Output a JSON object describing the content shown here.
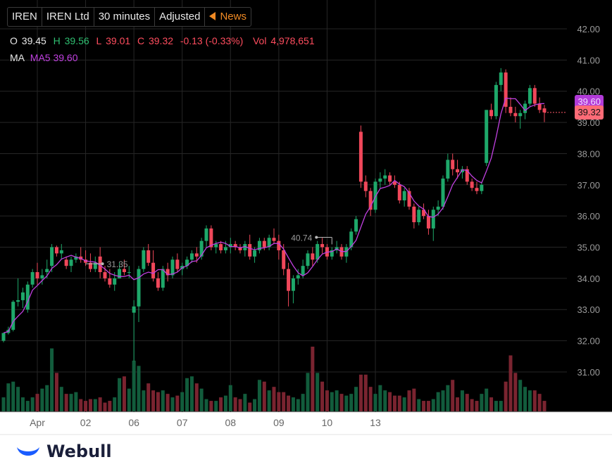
{
  "toolbar": {
    "symbol": "IREN",
    "name": "IREN Ltd",
    "interval": "30 minutes",
    "adjust": "Adjusted",
    "news": "News"
  },
  "ohlc": {
    "o_label": "O",
    "o": "39.45",
    "h_label": "H",
    "h": "39.56",
    "l_label": "L",
    "l": "39.01",
    "c_label": "C",
    "c": "39.32",
    "change": "-0.13 (-0.33%)",
    "vol_label": "Vol",
    "vol": "4,978,651"
  },
  "ma": {
    "label": "MA",
    "ma5": "MA5 39.60"
  },
  "last_price_tag": "39.32",
  "ma_price_tag": "39.60",
  "brand": "Webull",
  "colors": {
    "up": "#1ea86a",
    "down": "#f0475a",
    "ma": "#c040e0",
    "bg": "#000000"
  },
  "chart_data": {
    "type": "candlestick",
    "ylim": [
      30.0,
      42.5
    ],
    "yticks": [
      "42.00",
      "41.00",
      "40.00",
      "39.00",
      "38.00",
      "37.00",
      "36.00",
      "35.00",
      "34.00",
      "33.00",
      "32.00",
      "31.00"
    ],
    "x_labels": [
      "Apr",
      "02",
      "06",
      "07",
      "08",
      "09",
      "10",
      "13"
    ],
    "x_label_index": [
      7,
      17,
      27,
      37,
      47,
      57,
      67,
      77
    ],
    "annotations": [
      {
        "label": "40.74",
        "index": 68
      },
      {
        "label": "31.35",
        "index": 17
      }
    ],
    "candles": [
      [
        32.0,
        32.25,
        31.95,
        32.25
      ],
      [
        32.25,
        32.45,
        32.2,
        32.35
      ],
      [
        32.35,
        33.3,
        32.3,
        33.25
      ],
      [
        33.25,
        34.0,
        33.1,
        33.3
      ],
      [
        33.3,
        33.7,
        33.05,
        33.55
      ],
      [
        33.0,
        33.9,
        32.9,
        33.8
      ],
      [
        33.8,
        34.3,
        33.7,
        34.2
      ],
      [
        34.2,
        34.5,
        33.8,
        34.0
      ],
      [
        34.0,
        34.3,
        33.8,
        34.1
      ],
      [
        34.2,
        34.6,
        34.0,
        34.3
      ],
      [
        34.4,
        35.1,
        34.2,
        35.0
      ],
      [
        35.0,
        35.05,
        34.7,
        34.8
      ],
      [
        34.8,
        35.1,
        34.6,
        34.9
      ],
      [
        34.6,
        34.7,
        34.3,
        34.4
      ],
      [
        34.4,
        34.7,
        34.2,
        34.6
      ],
      [
        34.6,
        34.8,
        34.5,
        34.7
      ],
      [
        34.7,
        35.0,
        34.5,
        34.6
      ],
      [
        34.6,
        34.9,
        34.4,
        34.5
      ],
      [
        34.5,
        34.8,
        34.2,
        34.3
      ],
      [
        34.3,
        34.7,
        34.2,
        34.5
      ],
      [
        34.7,
        35.0,
        34.0,
        34.2
      ],
      [
        34.2,
        34.4,
        33.9,
        34.0
      ],
      [
        34.0,
        34.3,
        33.7,
        33.8
      ],
      [
        33.8,
        34.2,
        33.6,
        34.0
      ],
      [
        34.0,
        34.5,
        34.0,
        34.3
      ],
      [
        34.3,
        34.6,
        34.1,
        34.2
      ],
      [
        34.2,
        34.4,
        34.0,
        34.2
      ],
      [
        32.9,
        33.3,
        31.35,
        33.1
      ],
      [
        33.1,
        34.4,
        32.6,
        34.3
      ],
      [
        34.3,
        35.0,
        34.2,
        34.9
      ],
      [
        34.9,
        35.1,
        34.4,
        34.5
      ],
      [
        34.5,
        34.9,
        33.9,
        34.0
      ],
      [
        34.0,
        34.2,
        33.6,
        33.7
      ],
      [
        33.7,
        34.4,
        33.6,
        34.3
      ],
      [
        34.3,
        34.5,
        33.9,
        34.1
      ],
      [
        34.1,
        34.7,
        34.0,
        34.6
      ],
      [
        34.6,
        34.8,
        34.2,
        34.3
      ],
      [
        34.3,
        34.5,
        34.1,
        34.4
      ],
      [
        34.4,
        34.7,
        34.3,
        34.6
      ],
      [
        34.6,
        34.9,
        34.5,
        34.8
      ],
      [
        34.8,
        35.0,
        34.5,
        34.7
      ],
      [
        34.7,
        35.3,
        34.6,
        35.2
      ],
      [
        35.2,
        35.7,
        35.0,
        35.6
      ],
      [
        35.6,
        35.7,
        34.9,
        35.0
      ],
      [
        35.0,
        35.2,
        34.8,
        35.1
      ],
      [
        35.1,
        35.2,
        34.8,
        34.9
      ],
      [
        34.9,
        35.2,
        34.8,
        35.0
      ],
      [
        35.0,
        35.3,
        34.8,
        35.1
      ],
      [
        35.1,
        35.2,
        34.9,
        35.0
      ],
      [
        35.0,
        35.1,
        34.8,
        34.9
      ],
      [
        34.9,
        35.2,
        34.7,
        35.1
      ],
      [
        35.1,
        35.4,
        34.6,
        34.7
      ],
      [
        34.7,
        35.0,
        34.5,
        34.9
      ],
      [
        34.9,
        35.3,
        34.8,
        35.2
      ],
      [
        35.2,
        35.3,
        34.9,
        35.0
      ],
      [
        35.0,
        35.4,
        34.9,
        35.3
      ],
      [
        35.3,
        35.6,
        35.1,
        35.2
      ],
      [
        35.2,
        35.4,
        34.6,
        34.9
      ],
      [
        34.9,
        35.1,
        34.1,
        34.3
      ],
      [
        34.3,
        34.5,
        33.1,
        33.6
      ],
      [
        33.6,
        34.1,
        33.2,
        34.0
      ],
      [
        34.0,
        34.3,
        33.8,
        34.1
      ],
      [
        34.1,
        34.6,
        34.0,
        34.4
      ],
      [
        34.4,
        34.9,
        34.3,
        34.8
      ],
      [
        34.8,
        35.0,
        34.4,
        34.6
      ],
      [
        34.6,
        35.2,
        34.5,
        35.1
      ],
      [
        35.1,
        35.3,
        34.8,
        35.0
      ],
      [
        35.0,
        35.1,
        34.6,
        34.7
      ],
      [
        34.7,
        35.0,
        34.6,
        34.9
      ],
      [
        34.9,
        35.2,
        34.8,
        35.0
      ],
      [
        35.0,
        35.1,
        34.6,
        34.7
      ],
      [
        34.7,
        35.1,
        34.5,
        35.0
      ],
      [
        35.0,
        35.6,
        34.9,
        35.5
      ],
      [
        35.5,
        36.0,
        35.4,
        35.9
      ],
      [
        38.7,
        38.9,
        36.9,
        37.1
      ],
      [
        37.1,
        37.3,
        36.6,
        36.8
      ],
      [
        36.8,
        36.9,
        36.0,
        36.2
      ],
      [
        36.2,
        37.2,
        36.1,
        37.1
      ],
      [
        37.1,
        37.4,
        36.9,
        37.2
      ],
      [
        37.2,
        37.5,
        37.0,
        37.3
      ],
      [
        37.3,
        37.4,
        37.0,
        37.1
      ],
      [
        37.1,
        37.3,
        36.9,
        37.0
      ],
      [
        37.0,
        37.1,
        36.4,
        36.5
      ],
      [
        36.5,
        36.9,
        36.3,
        36.8
      ],
      [
        36.8,
        36.9,
        36.2,
        36.3
      ],
      [
        36.3,
        36.4,
        35.6,
        35.8
      ],
      [
        35.8,
        36.3,
        35.7,
        36.2
      ],
      [
        36.2,
        36.4,
        35.9,
        36.0
      ],
      [
        36.0,
        36.2,
        35.4,
        35.6
      ],
      [
        35.6,
        36.3,
        35.2,
        36.2
      ],
      [
        36.2,
        36.5,
        36.0,
        36.3
      ],
      [
        36.3,
        37.3,
        36.2,
        37.2
      ],
      [
        37.2,
        38.0,
        37.1,
        37.8
      ],
      [
        37.8,
        38.0,
        37.3,
        37.5
      ],
      [
        37.5,
        37.8,
        37.2,
        37.4
      ],
      [
        37.4,
        37.6,
        37.2,
        37.5
      ],
      [
        37.5,
        37.6,
        37.0,
        37.1
      ],
      [
        37.1,
        37.2,
        36.8,
        36.9
      ],
      [
        36.9,
        37.1,
        36.7,
        36.8
      ],
      [
        36.8,
        37.1,
        36.7,
        37.0
      ],
      [
        37.7,
        39.4,
        37.6,
        39.4
      ],
      [
        39.4,
        39.6,
        39.1,
        39.2
      ],
      [
        39.2,
        40.3,
        39.1,
        40.2
      ],
      [
        40.2,
        40.74,
        40.0,
        40.6
      ],
      [
        40.6,
        40.7,
        39.3,
        39.5
      ],
      [
        39.5,
        39.8,
        39.2,
        39.3
      ],
      [
        39.3,
        39.5,
        39.0,
        39.2
      ],
      [
        39.2,
        39.4,
        38.8,
        39.3
      ],
      [
        39.3,
        39.7,
        39.1,
        39.6
      ],
      [
        39.6,
        40.2,
        39.5,
        40.1
      ],
      [
        40.1,
        40.2,
        39.5,
        39.6
      ],
      [
        39.6,
        39.8,
        39.3,
        39.4
      ],
      [
        39.45,
        39.56,
        39.01,
        39.32
      ]
    ],
    "volumes": [
      0.8,
      1.6,
      1.7,
      1.4,
      0.8,
      0.6,
      0.8,
      1.0,
      1.3,
      1.5,
      3.6,
      2.2,
      1.4,
      1.0,
      1.0,
      1.1,
      0.7,
      0.6,
      0.7,
      0.7,
      0.8,
      0.5,
      0.6,
      0.8,
      1.9,
      2.0,
      1.3,
      2.9,
      2.6,
      1.2,
      1.6,
      1.2,
      1.1,
      1.2,
      1.0,
      0.8,
      0.9,
      1.1,
      1.9,
      2.0,
      1.6,
      1.3,
      0.7,
      0.6,
      0.6,
      0.8,
      0.9,
      1.5,
      0.8,
      0.7,
      1.0,
      0.5,
      0.7,
      1.8,
      1.7,
      1.2,
      1.4,
      1.1,
      1.1,
      0.9,
      0.8,
      0.7,
      1.0,
      2.2,
      3.7,
      2.2,
      1.7,
      1.2,
      1.1,
      1.2,
      1.0,
      0.9,
      1.0,
      1.4,
      2.1,
      2.1,
      1.4,
      1.0,
      1.5,
      1.2,
      1.1,
      0.9,
      0.9,
      0.8,
      1.2,
      1.3,
      0.7,
      0.6,
      0.6,
      0.7,
      1.1,
      1.2,
      1.5,
      1.8,
      0.8,
      1.2,
      1.0,
      0.7,
      0.6,
      1.0,
      1.3,
      0.8,
      0.6,
      0.6,
      1.7,
      3.2,
      2.2,
      1.8,
      1.4,
      1.2,
      1.2,
      1.0,
      0.6
    ]
  }
}
